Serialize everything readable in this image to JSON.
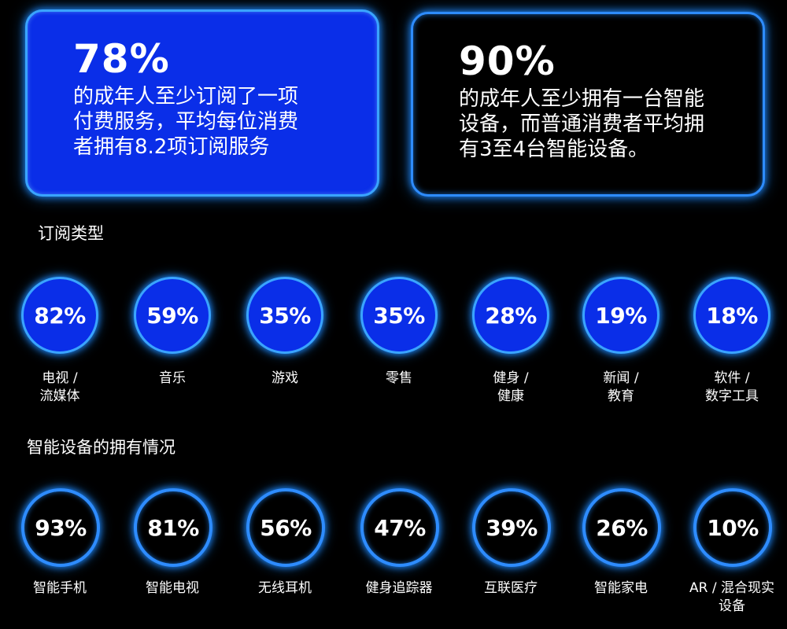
{
  "cards": [
    {
      "percent": "78%",
      "text": "的成年人至少订阅了一项\n付费服务，平均每位消费\n者拥有8.2项订阅服务"
    },
    {
      "percent": "90%",
      "text": "的成年人至少拥有一台智能\n设备，而普通消费者平均拥\n有3至4台智能设备。"
    }
  ],
  "sections": {
    "subscriptions_title": "订阅类型",
    "devices_title": "智能设备的拥有情况"
  },
  "chart_data": [
    {
      "type": "bar",
      "title": "订阅类型",
      "categories": [
        "电视 / 流媒体",
        "音乐",
        "游戏",
        "零售",
        "健身 / 健康",
        "新闻 / 教育",
        "软件 / 数字工具"
      ],
      "display_labels": [
        "电视 /\n流媒体",
        "音乐",
        "游戏",
        "零售",
        "健身 /\n健康",
        "新闻 /\n教育",
        "软件 /\n数字工具"
      ],
      "values": [
        82,
        59,
        35,
        35,
        28,
        19,
        18
      ],
      "value_labels": [
        "82%",
        "59%",
        "35%",
        "35%",
        "28%",
        "19%",
        "18%"
      ],
      "unit": "%"
    },
    {
      "type": "bar",
      "title": "智能设备的拥有情况",
      "categories": [
        "智能手机",
        "智能电视",
        "无线耳机",
        "健身追踪器",
        "互联医疗",
        "智能家电",
        "AR / 混合现实设备"
      ],
      "display_labels": [
        "智能手机",
        "智能电视",
        "无线耳机",
        "健身追踪器",
        "互联医疗",
        "智能家电",
        "AR / 混合现实\n设备"
      ],
      "values": [
        93,
        81,
        56,
        47,
        39,
        26,
        10
      ],
      "value_labels": [
        "93%",
        "81%",
        "56%",
        "47%",
        "39%",
        "26%",
        "10%"
      ],
      "unit": "%"
    }
  ],
  "colors": {
    "background": "#000000",
    "fill_blue": "#0a2ee8",
    "glow_blue": "#2e8cff",
    "text": "#ffffff"
  }
}
